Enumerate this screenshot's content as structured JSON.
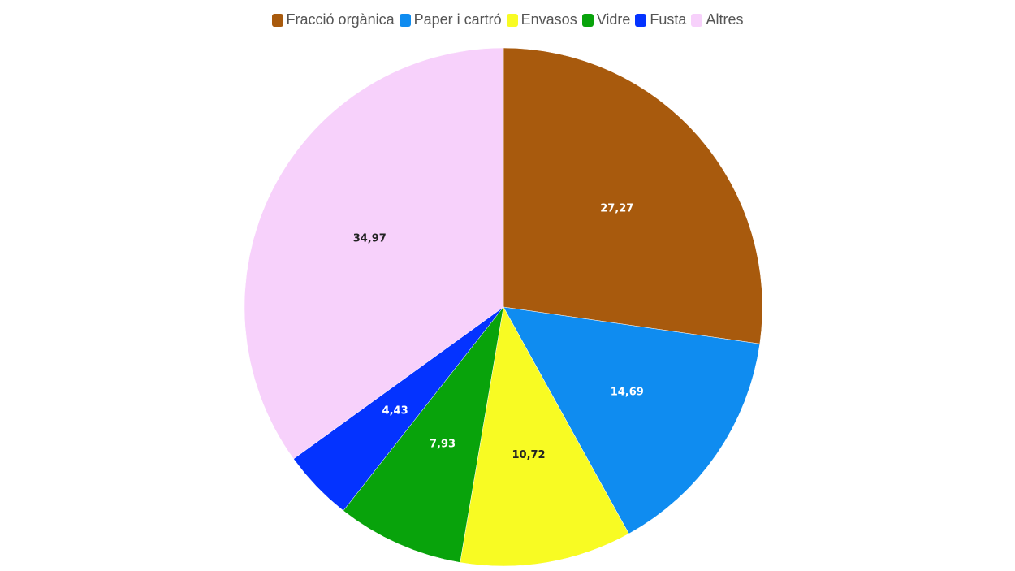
{
  "chart_data": {
    "type": "pie",
    "categories": [
      "Fracció orgànica",
      "Paper i cartró",
      "Envasos",
      "Vidre",
      "Fusta",
      "Altres"
    ],
    "values": [
      27.27,
      14.69,
      10.72,
      7.93,
      4.43,
      34.97
    ],
    "value_labels": [
      "27,27",
      "14,69",
      "10,72",
      "7,93",
      "4,43",
      "34,97"
    ],
    "colors": [
      "#a85a0d",
      "#0f8cf0",
      "#f8fb23",
      "#08a30b",
      "#0433ff",
      "#f7d1fb"
    ],
    "label_colors": [
      "#ffffff",
      "#ffffff",
      "#222222",
      "#ffffff",
      "#ffffff",
      "#222222"
    ],
    "legend_position": "top-center",
    "start_angle": "top, clockwise"
  }
}
